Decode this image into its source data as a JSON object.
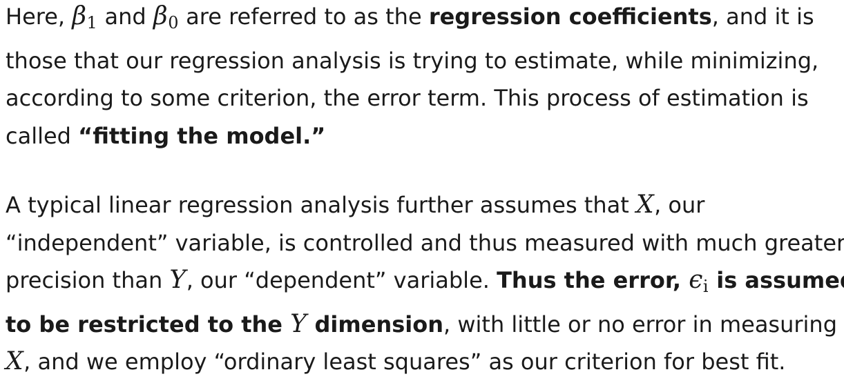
{
  "paragraph_1": {
    "line_1": {
      "t1": "Here, ",
      "m1_base": "β",
      "m1_sub": "1",
      "t2": " and ",
      "m2_base": "β",
      "m2_sub": "0",
      "t3": " are referred to as the ",
      "b1": "regression coefficients",
      "t4": ", and it is"
    },
    "line_2": "those that our regression analysis is trying to estimate, while minimizing,",
    "line_3": "according to some criterion, the error term. This process of estimation is",
    "line_4": {
      "t1": "called ",
      "b1": "“fitting the model.”"
    }
  },
  "paragraph_2": {
    "line_1": {
      "t1": "A typical linear regression analysis further assumes that ",
      "m1": "X",
      "t2": ", our"
    },
    "line_2": "“independent” variable, is controlled and thus measured with much greater",
    "line_3": {
      "t1": "precision than ",
      "m1": "Y",
      "t2": ", our “dependent” variable. ",
      "b1": "Thus the error, ",
      "m2_base": "ϵ",
      "m2_sub": "i",
      "b2": " is assumed"
    },
    "line_4": {
      "b1": "to be restricted to the ",
      "m1": "Y",
      "b2": " dimension",
      "t1": ", with little or no error in measuring"
    },
    "line_5": {
      "m1": "X",
      "t1": ", and we employ “ordinary least squares” as our criterion for best fit."
    }
  }
}
